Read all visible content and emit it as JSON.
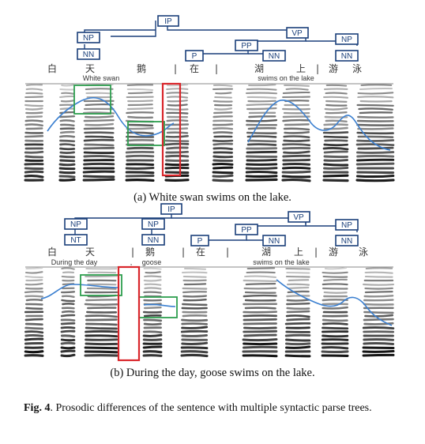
{
  "panel_a": {
    "caption": "(a) White swan swims on the lake.",
    "tree": {
      "ip": "IP",
      "np_left": "NP",
      "nn_left": "NN",
      "pp": "PP",
      "p": "P",
      "nn_mid": "NN",
      "vp": "VP",
      "np_right": "NP",
      "nn_right": "NN"
    },
    "chars": [
      "白",
      "天",
      "鹅",
      "|",
      "在",
      "|",
      "湖",
      "上",
      "|",
      "游",
      "泳"
    ],
    "gloss_left": "White swan",
    "gloss_right": "swims on the lake"
  },
  "panel_b": {
    "caption": "(b) During the day, goose swims on the lake.",
    "tree": {
      "ip": "IP",
      "np_1": "NP",
      "nt_1": "NT",
      "np_2": "NP",
      "nn_2": "NN",
      "pp": "PP",
      "p": "P",
      "nn_mid": "NN",
      "vp": "VP",
      "np_right": "NP",
      "nn_right": "NN"
    },
    "chars": [
      "白",
      "天",
      "|",
      "鹅",
      "|",
      "在",
      "|",
      "湖",
      "上",
      "|",
      "游",
      "泳"
    ],
    "gloss_day": "During the day",
    "gloss_comma": ",",
    "gloss_goose": "goose",
    "gloss_right": "swims on the lake"
  },
  "figure": {
    "label": "Fig. 4",
    "text": ". Prosodic differences of the sentence with multiple syntactic parse trees."
  },
  "colors": {
    "tree": "#1a3f7a",
    "pitch": "#3a7fd0",
    "green": "#2e9e4f",
    "red": "#d9262b",
    "gray": "#6e6e6e"
  }
}
